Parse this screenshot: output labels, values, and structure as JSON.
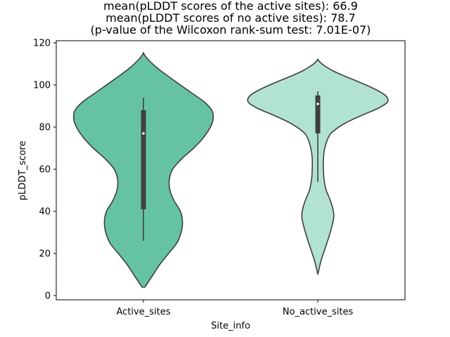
{
  "chart_data": {
    "type": "violin",
    "title_lines": [
      "mean(pLDDT scores of the active sites): 66.9",
      "mean(pLDDT scores of no active sites): 78.7",
      "(p-value of the Wilcoxon rank-sum test: 7.01E-07)"
    ],
    "xlabel": "Site_info",
    "ylabel": "pLDDT_score",
    "ylim": [
      -2,
      121
    ],
    "yticks": [
      0,
      20,
      40,
      60,
      80,
      100,
      120
    ],
    "categories": [
      "Active_sites",
      "No_active_sites"
    ],
    "series": [
      {
        "name": "Active_sites",
        "color": "#66c2a5",
        "mean": 66.9,
        "box": {
          "whisker_low": 26,
          "q1": 41,
          "median": 77,
          "q3": 88,
          "whisker_high": 94
        },
        "density": [
          [
            4,
            0.02
          ],
          [
            6,
            0.06
          ],
          [
            10,
            0.14
          ],
          [
            15,
            0.24
          ],
          [
            20,
            0.36
          ],
          [
            25,
            0.48
          ],
          [
            30,
            0.54
          ],
          [
            35,
            0.56
          ],
          [
            40,
            0.53
          ],
          [
            45,
            0.44
          ],
          [
            50,
            0.38
          ],
          [
            55,
            0.37
          ],
          [
            60,
            0.42
          ],
          [
            65,
            0.55
          ],
          [
            70,
            0.72
          ],
          [
            75,
            0.86
          ],
          [
            80,
            0.96
          ],
          [
            84,
            1.0
          ],
          [
            88,
            0.98
          ],
          [
            92,
            0.87
          ],
          [
            96,
            0.7
          ],
          [
            100,
            0.53
          ],
          [
            104,
            0.36
          ],
          [
            108,
            0.2
          ],
          [
            112,
            0.07
          ],
          [
            115,
            0.0
          ]
        ]
      },
      {
        "name": "No_active_sites",
        "color": "#b2e2d2",
        "mean": 78.7,
        "box": {
          "whisker_low": 54,
          "q1": 77,
          "median": 91,
          "q3": 95,
          "whisker_high": 97
        },
        "density": [
          [
            10,
            0.0
          ],
          [
            13,
            0.02
          ],
          [
            17,
            0.05
          ],
          [
            22,
            0.1
          ],
          [
            28,
            0.16
          ],
          [
            34,
            0.21
          ],
          [
            38,
            0.23
          ],
          [
            42,
            0.21
          ],
          [
            46,
            0.17
          ],
          [
            50,
            0.12
          ],
          [
            55,
            0.09
          ],
          [
            60,
            0.08
          ],
          [
            65,
            0.08
          ],
          [
            70,
            0.1
          ],
          [
            75,
            0.15
          ],
          [
            78,
            0.22
          ],
          [
            82,
            0.4
          ],
          [
            86,
            0.66
          ],
          [
            89,
            0.87
          ],
          [
            92,
            1.0
          ],
          [
            95,
            0.97
          ],
          [
            98,
            0.82
          ],
          [
            101,
            0.62
          ],
          [
            104,
            0.4
          ],
          [
            107,
            0.2
          ],
          [
            110,
            0.06
          ],
          [
            112,
            0.0
          ]
        ]
      }
    ]
  }
}
